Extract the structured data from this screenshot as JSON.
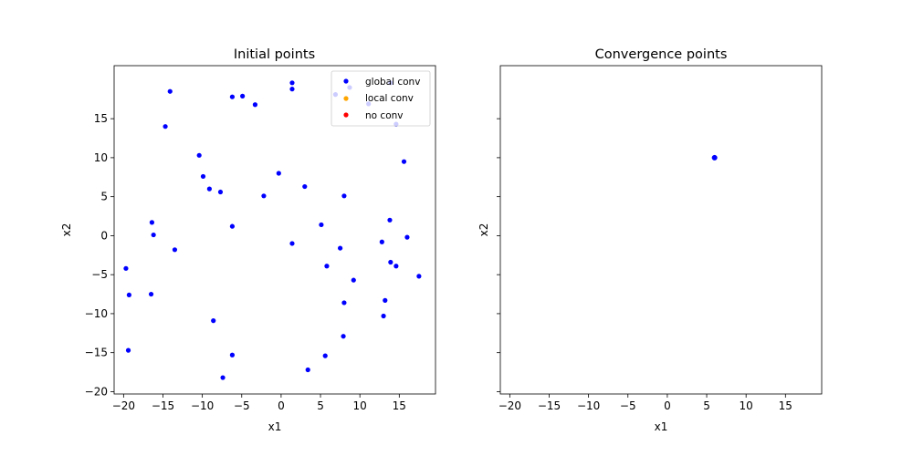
{
  "chart_data": [
    {
      "type": "scatter",
      "title": "Initial points",
      "xlabel": "x1",
      "ylabel": "x2",
      "xlim": [
        -21.2,
        19.6
      ],
      "ylim": [
        -20.3,
        21.8
      ],
      "xticks": [
        -20,
        -15,
        -10,
        -5,
        0,
        5,
        10,
        15
      ],
      "yticks": [
        -20,
        -15,
        -10,
        -5,
        0,
        5,
        10,
        15
      ],
      "grid": false,
      "legend": {
        "position": "top-right",
        "entries": [
          {
            "label": "global conv",
            "color": "#0000ff"
          },
          {
            "label": "local conv",
            "color": "#ffa500"
          },
          {
            "label": "no conv",
            "color": "#ff0000"
          }
        ]
      },
      "series": [
        {
          "name": "global conv",
          "color": "#0000ff",
          "points": [
            [
              1.4,
              19.6
            ],
            [
              1.4,
              18.8
            ],
            [
              -6.2,
              17.8
            ],
            [
              -4.9,
              17.9
            ],
            [
              -3.3,
              16.8
            ],
            [
              -14.1,
              18.5
            ],
            [
              6.9,
              18.1
            ],
            [
              8.7,
              19.0
            ],
            [
              13.9,
              19.6
            ],
            [
              11.1,
              16.9
            ],
            [
              -14.7,
              14.0
            ],
            [
              14.6,
              14.3
            ],
            [
              15.6,
              9.5
            ],
            [
              -10.4,
              10.3
            ],
            [
              -0.3,
              8.0
            ],
            [
              -9.9,
              7.6
            ],
            [
              -9.1,
              6.0
            ],
            [
              -7.7,
              5.6
            ],
            [
              -2.2,
              5.1
            ],
            [
              3.0,
              6.3
            ],
            [
              8.0,
              5.1
            ],
            [
              -16.4,
              1.7
            ],
            [
              -6.2,
              1.2
            ],
            [
              5.1,
              1.4
            ],
            [
              13.8,
              2.0
            ],
            [
              -16.2,
              0.1
            ],
            [
              16.0,
              -0.2
            ],
            [
              -13.5,
              -1.8
            ],
            [
              1.4,
              -1.0
            ],
            [
              12.8,
              -0.8
            ],
            [
              7.5,
              -1.6
            ],
            [
              -19.7,
              -4.2
            ],
            [
              5.8,
              -3.9
            ],
            [
              13.9,
              -3.4
            ],
            [
              14.6,
              -3.9
            ],
            [
              17.5,
              -5.2
            ],
            [
              9.2,
              -5.7
            ],
            [
              -19.3,
              -7.6
            ],
            [
              -16.5,
              -7.5
            ],
            [
              13.2,
              -8.3
            ],
            [
              8.0,
              -8.6
            ],
            [
              13.0,
              -10.3
            ],
            [
              -8.6,
              -10.9
            ],
            [
              7.9,
              -12.9
            ],
            [
              -19.4,
              -14.7
            ],
            [
              -6.2,
              -15.3
            ],
            [
              5.6,
              -15.4
            ],
            [
              3.4,
              -17.2
            ],
            [
              -7.4,
              -18.2
            ]
          ]
        },
        {
          "name": "local conv",
          "color": "#ffa500",
          "points": []
        },
        {
          "name": "no conv",
          "color": "#ff0000",
          "points": []
        }
      ]
    },
    {
      "type": "scatter",
      "title": "Convergence points",
      "xlabel": "x1",
      "ylabel": "x2",
      "xlim": [
        -21.2,
        19.6
      ],
      "ylim": [
        -20.3,
        21.8
      ],
      "xticks": [
        -20,
        -15,
        -10,
        -5,
        0,
        5,
        10,
        15
      ],
      "yticks": [
        -20,
        -15,
        -10,
        -5,
        0,
        5,
        10,
        15
      ],
      "grid": false,
      "series": [
        {
          "name": "global conv",
          "color": "#0000ff",
          "points": [
            [
              6.0,
              10.0
            ],
            [
              6.05,
              10.0
            ],
            [
              5.95,
              10.0
            ],
            [
              6.0,
              10.05
            ],
            [
              6.0,
              9.95
            ]
          ]
        }
      ]
    }
  ]
}
